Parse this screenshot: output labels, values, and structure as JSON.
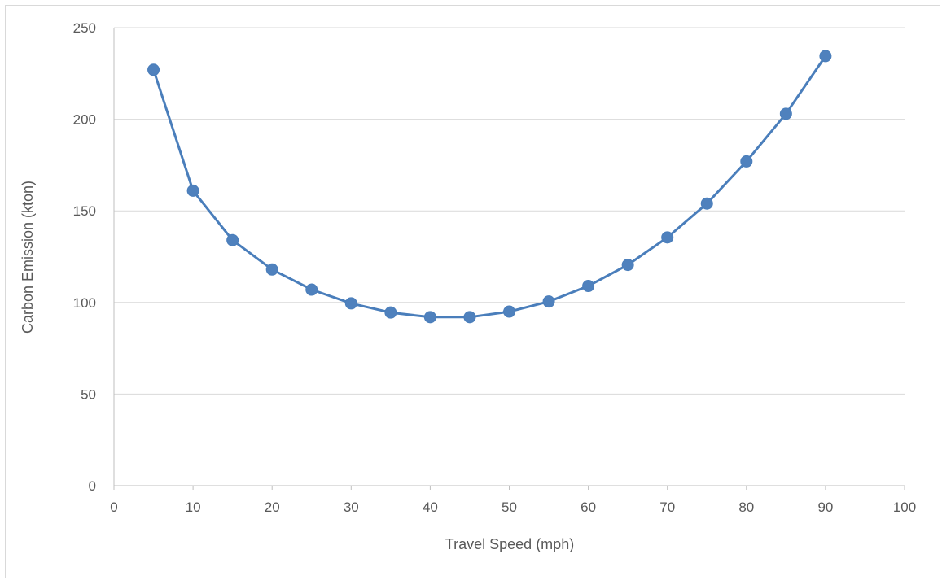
{
  "chart_data": {
    "type": "line",
    "xlabel": "Travel Speed (mph)",
    "ylabel": "Carbon Emission (kton)",
    "xlim": [
      0,
      100
    ],
    "ylim": [
      0,
      250
    ],
    "x_ticks": [
      "0",
      "10",
      "20",
      "30",
      "40",
      "50",
      "60",
      "70",
      "80",
      "90",
      "100"
    ],
    "y_ticks": [
      "0",
      "50",
      "100",
      "150",
      "200",
      "250"
    ],
    "grid": "horizontal",
    "legend": "none",
    "colors": {
      "series": "#4a7ebb",
      "marker": "#4f81bd",
      "grid": "#d9d9d9",
      "axis": "#bfbfbf",
      "text": "#595959"
    },
    "series": [
      {
        "x": [
          5,
          10,
          15,
          20,
          25,
          30,
          35,
          40,
          45,
          50,
          55,
          60,
          65,
          70,
          75,
          80,
          85,
          90
        ],
        "values": [
          227,
          161,
          134,
          118,
          107,
          99.5,
          94.5,
          92,
          92,
          95,
          100.5,
          109,
          120.5,
          135.5,
          154,
          177,
          203,
          234.5
        ]
      }
    ]
  }
}
